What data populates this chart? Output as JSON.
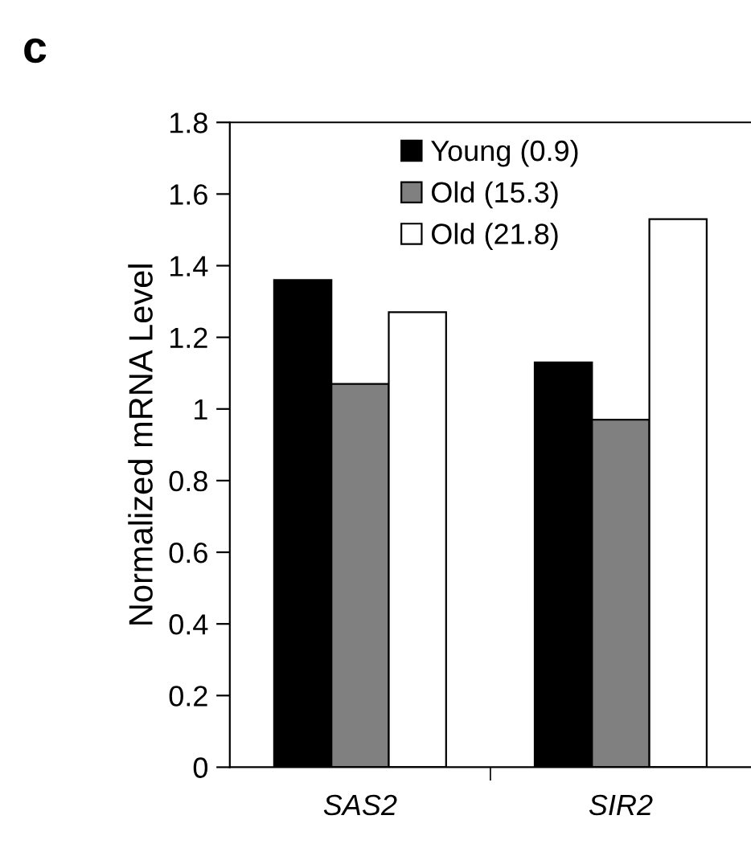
{
  "chart_data": {
    "type": "bar",
    "title": "c",
    "ylabel": "Normalized mRNA Level",
    "categories": [
      "SAS2",
      "SIR2"
    ],
    "series": [
      {
        "name": "Young (0.9)",
        "color": "#000000",
        "values": [
          1.36,
          1.13
        ]
      },
      {
        "name": "Old (15.3)",
        "color": "#808080",
        "values": [
          1.07,
          0.97
        ]
      },
      {
        "name": "Old (21.8)",
        "color": "#ffffff",
        "values": [
          1.27,
          1.53
        ]
      }
    ],
    "ylim": [
      0,
      1.8
    ],
    "yticks": [
      0,
      0.2,
      0.4,
      0.6,
      0.8,
      1,
      1.2,
      1.4,
      1.6,
      1.8
    ],
    "grid": false,
    "legend": "top"
  }
}
